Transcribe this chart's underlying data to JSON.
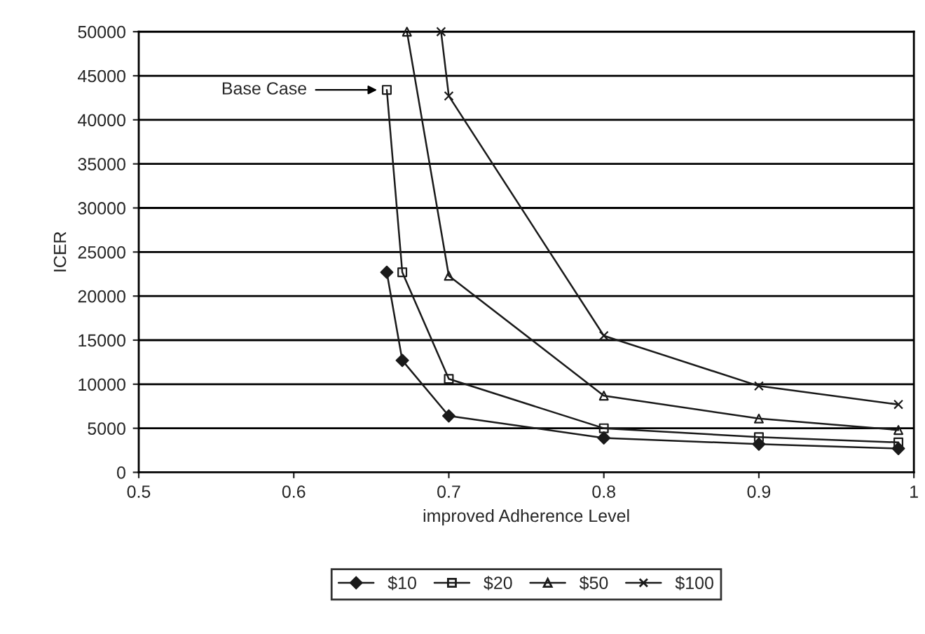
{
  "chart_data": {
    "type": "line",
    "xlabel": "improved Adherence Level",
    "ylabel": "ICER",
    "xlim": [
      0.5,
      1
    ],
    "xticks": [
      0.5,
      0.6,
      0.7,
      0.8,
      0.9,
      1
    ],
    "ylim": [
      0,
      50000
    ],
    "yticks": [
      0,
      5000,
      10000,
      15000,
      20000,
      25000,
      30000,
      35000,
      40000,
      45000,
      50000
    ],
    "grid": "y",
    "legend": "bottom",
    "line_style": "solid",
    "annotations": [
      {
        "text": "Base Case",
        "x": 0.66,
        "y": 43400
      }
    ],
    "series": [
      {
        "name": "$10",
        "color": "#1a1a1a",
        "marker": "diamond",
        "x": [
          0.66,
          0.67,
          0.7,
          0.8,
          0.9,
          0.99
        ],
        "values": [
          22700,
          12700,
          6400,
          3900,
          3200,
          2700
        ]
      },
      {
        "name": "$20",
        "color": "#1a1a1a",
        "marker": "square",
        "x": [
          0.66,
          0.67,
          0.7,
          0.8,
          0.9,
          0.99
        ],
        "values": [
          43400,
          22700,
          10600,
          5000,
          4000,
          3400
        ]
      },
      {
        "name": "$50",
        "color": "#1a1a1a",
        "marker": "triangle",
        "x": [
          0.673,
          0.7,
          0.8,
          0.9,
          0.99
        ],
        "values": [
          50000,
          22300,
          8700,
          6100,
          4800
        ]
      },
      {
        "name": "$100",
        "color": "#1a1a1a",
        "marker": "cross",
        "x": [
          0.695,
          0.7,
          0.8,
          0.9,
          0.99
        ],
        "values": [
          50000,
          42700,
          15500,
          9800,
          7700
        ]
      }
    ]
  }
}
